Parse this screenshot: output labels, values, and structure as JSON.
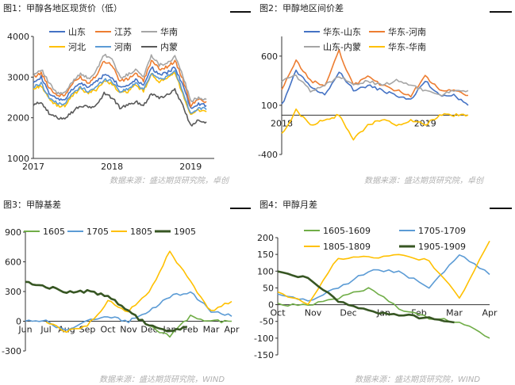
{
  "panels": [
    {
      "title": "图1：甲醇各地区现货价（低）",
      "source": "数据来源：盛达期货研究院，卓创"
    },
    {
      "title": "图2：甲醇地区间价差",
      "source": "数据来源：盛达期货研究院，卓创"
    },
    {
      "title": "图3：甲醇基差",
      "source": "数据来源：盛达期货研究院，WIND"
    },
    {
      "title": "图4：甲醇月差",
      "source": "数据来源：盛达期货研究院，WIND"
    }
  ],
  "chart_data": [
    {
      "type": "line",
      "title": "",
      "xlabel": "",
      "ylabel": "",
      "x_ticks": [
        "2017",
        "2018",
        "2019"
      ],
      "x_range": [
        2017.0,
        2019.3
      ],
      "ylim": [
        1000,
        4000
      ],
      "y_ticks": [
        "1000",
        "2000",
        "3000",
        "4000"
      ],
      "legend": "top",
      "grid": false,
      "x": [
        2017.0,
        2017.1,
        2017.2,
        2017.3,
        2017.4,
        2017.5,
        2017.6,
        2017.7,
        2017.8,
        2017.9,
        2018.0,
        2018.1,
        2018.2,
        2018.3,
        2018.4,
        2018.5,
        2018.6,
        2018.7,
        2018.8,
        2018.9,
        2019.0,
        2019.1,
        2019.2
      ],
      "series": [
        {
          "name": "山东",
          "color": "#4472c4",
          "values": [
            2900,
            3000,
            2600,
            2450,
            2450,
            2700,
            2850,
            2750,
            2900,
            3050,
            3000,
            2750,
            2800,
            2950,
            2800,
            3250,
            3050,
            3100,
            3250,
            2800,
            2250,
            2350,
            2300
          ]
        },
        {
          "name": "江苏",
          "color": "#ed7d31",
          "values": [
            3000,
            3100,
            2750,
            2550,
            2550,
            2850,
            3000,
            2850,
            3050,
            3400,
            3300,
            2900,
            2950,
            3100,
            2900,
            3400,
            3200,
            3250,
            3400,
            2950,
            2300,
            2450,
            2400
          ]
        },
        {
          "name": "华南",
          "color": "#a5a5a5",
          "values": [
            3050,
            3200,
            2850,
            2600,
            2600,
            2900,
            3100,
            2950,
            3150,
            3550,
            3450,
            3000,
            3050,
            3200,
            3000,
            3550,
            3300,
            3350,
            3500,
            3050,
            2400,
            2500,
            2450
          ]
        },
        {
          "name": "河北",
          "color": "#ffc000",
          "values": [
            2700,
            2800,
            2450,
            2300,
            2300,
            2550,
            2700,
            2600,
            2700,
            2900,
            2850,
            2600,
            2650,
            2800,
            2650,
            3050,
            2900,
            2950,
            3100,
            2600,
            2050,
            2200,
            2150
          ]
        },
        {
          "name": "河南",
          "color": "#5b9bd5",
          "values": [
            2750,
            2850,
            2500,
            2350,
            2350,
            2600,
            2750,
            2650,
            2750,
            2950,
            2900,
            2650,
            2700,
            2850,
            2700,
            3100,
            2950,
            3000,
            3150,
            2650,
            2100,
            2250,
            2200
          ]
        },
        {
          "name": "内蒙",
          "color": "#595959",
          "values": [
            2300,
            2400,
            2100,
            2000,
            2000,
            2150,
            2300,
            2250,
            2300,
            2600,
            2500,
            2250,
            2300,
            2400,
            2300,
            2600,
            2500,
            2550,
            2700,
            2300,
            1800,
            1950,
            1900
          ]
        }
      ]
    },
    {
      "type": "line",
      "title": "",
      "xlabel": "",
      "ylabel": "",
      "x_ticks": [
        "2018",
        "2019"
      ],
      "x_range": [
        2018.0,
        2019.3
      ],
      "ylim": [
        -400,
        800
      ],
      "y_ticks": [
        "-400",
        "100",
        "600"
      ],
      "legend": "top",
      "grid": false,
      "x": [
        2018.0,
        2018.1,
        2018.2,
        2018.3,
        2018.4,
        2018.5,
        2018.6,
        2018.7,
        2018.8,
        2018.9,
        2019.0,
        2019.1,
        2019.2,
        2019.3
      ],
      "series": [
        {
          "name": "华东-山东",
          "color": "#4472c4",
          "values": [
            100,
            450,
            300,
            200,
            450,
            250,
            300,
            250,
            200,
            150,
            350,
            200,
            200,
            100
          ]
        },
        {
          "name": "华东-河南",
          "color": "#ed7d31",
          "values": [
            250,
            550,
            350,
            300,
            650,
            300,
            400,
            300,
            250,
            200,
            400,
            250,
            250,
            200
          ]
        },
        {
          "name": "山东-内蒙",
          "color": "#a5a5a5",
          "values": [
            350,
            400,
            250,
            300,
            400,
            300,
            350,
            300,
            350,
            300,
            250,
            200,
            250,
            250
          ]
        },
        {
          "name": "华东-华南",
          "color": "#ffc000",
          "values": [
            -200,
            50,
            -100,
            -50,
            0,
            -250,
            -100,
            -50,
            -100,
            -50,
            -100,
            0,
            0,
            0
          ]
        }
      ]
    },
    {
      "type": "line",
      "title": "",
      "xlabel": "",
      "ylabel": "",
      "x_ticks": [
        "Jun",
        "Jul",
        "Aug",
        "Sep",
        "Oct",
        "Nov",
        "Dec",
        "Jan",
        "Feb",
        "Mar",
        "Apr"
      ],
      "ylim": [
        -300,
        900
      ],
      "y_ticks": [
        "-300",
        "0",
        "300",
        "600",
        "900"
      ],
      "legend": "top",
      "grid": false,
      "x": [
        0,
        1,
        2,
        3,
        4,
        5,
        6,
        7,
        8,
        9,
        10
      ],
      "series": [
        {
          "name": "1605",
          "color": "#70ad47",
          "values": [
            null,
            null,
            null,
            null,
            null,
            null,
            -50,
            -150,
            50,
            0,
            0
          ]
        },
        {
          "name": "1705",
          "color": "#5b9bd5",
          "values": [
            0,
            0,
            -100,
            0,
            50,
            0,
            100,
            250,
            300,
            100,
            50
          ]
        },
        {
          "name": "1805",
          "color": "#ffc000",
          "values": [
            null,
            0,
            -100,
            -50,
            200,
            100,
            300,
            700,
            400,
            100,
            200
          ]
        },
        {
          "name": "1905",
          "color": "#375623",
          "values": [
            400,
            350,
            300,
            300,
            250,
            100,
            -50,
            -100,
            -50,
            null,
            null
          ]
        }
      ]
    },
    {
      "type": "line",
      "title": "",
      "xlabel": "",
      "ylabel": "",
      "x_ticks": [
        "Oct",
        "Nov",
        "Dec",
        "Jan",
        "Feb",
        "Mar",
        "Apr"
      ],
      "ylim": [
        -150,
        200
      ],
      "y_ticks": [
        "-150",
        "-100",
        "-50",
        "0",
        "50",
        "100",
        "150",
        "200"
      ],
      "legend": "top",
      "grid": false,
      "x": [
        0,
        1,
        2,
        3,
        4,
        5,
        6,
        7
      ],
      "series": [
        {
          "name": "1605-1609",
          "color": "#70ad47",
          "values": [
            0,
            0,
            20,
            50,
            -10,
            -40,
            -50,
            -100
          ]
        },
        {
          "name": "1705-1709",
          "color": "#5b9bd5",
          "values": [
            30,
            10,
            50,
            100,
            100,
            50,
            150,
            90
          ]
        },
        {
          "name": "1805-1809",
          "color": "#ffc000",
          "values": [
            40,
            0,
            140,
            140,
            150,
            130,
            20,
            190
          ]
        },
        {
          "name": "1905-1909",
          "color": "#375623",
          "values": [
            100,
            80,
            10,
            -20,
            -30,
            -40,
            -60,
            null
          ]
        }
      ]
    }
  ]
}
